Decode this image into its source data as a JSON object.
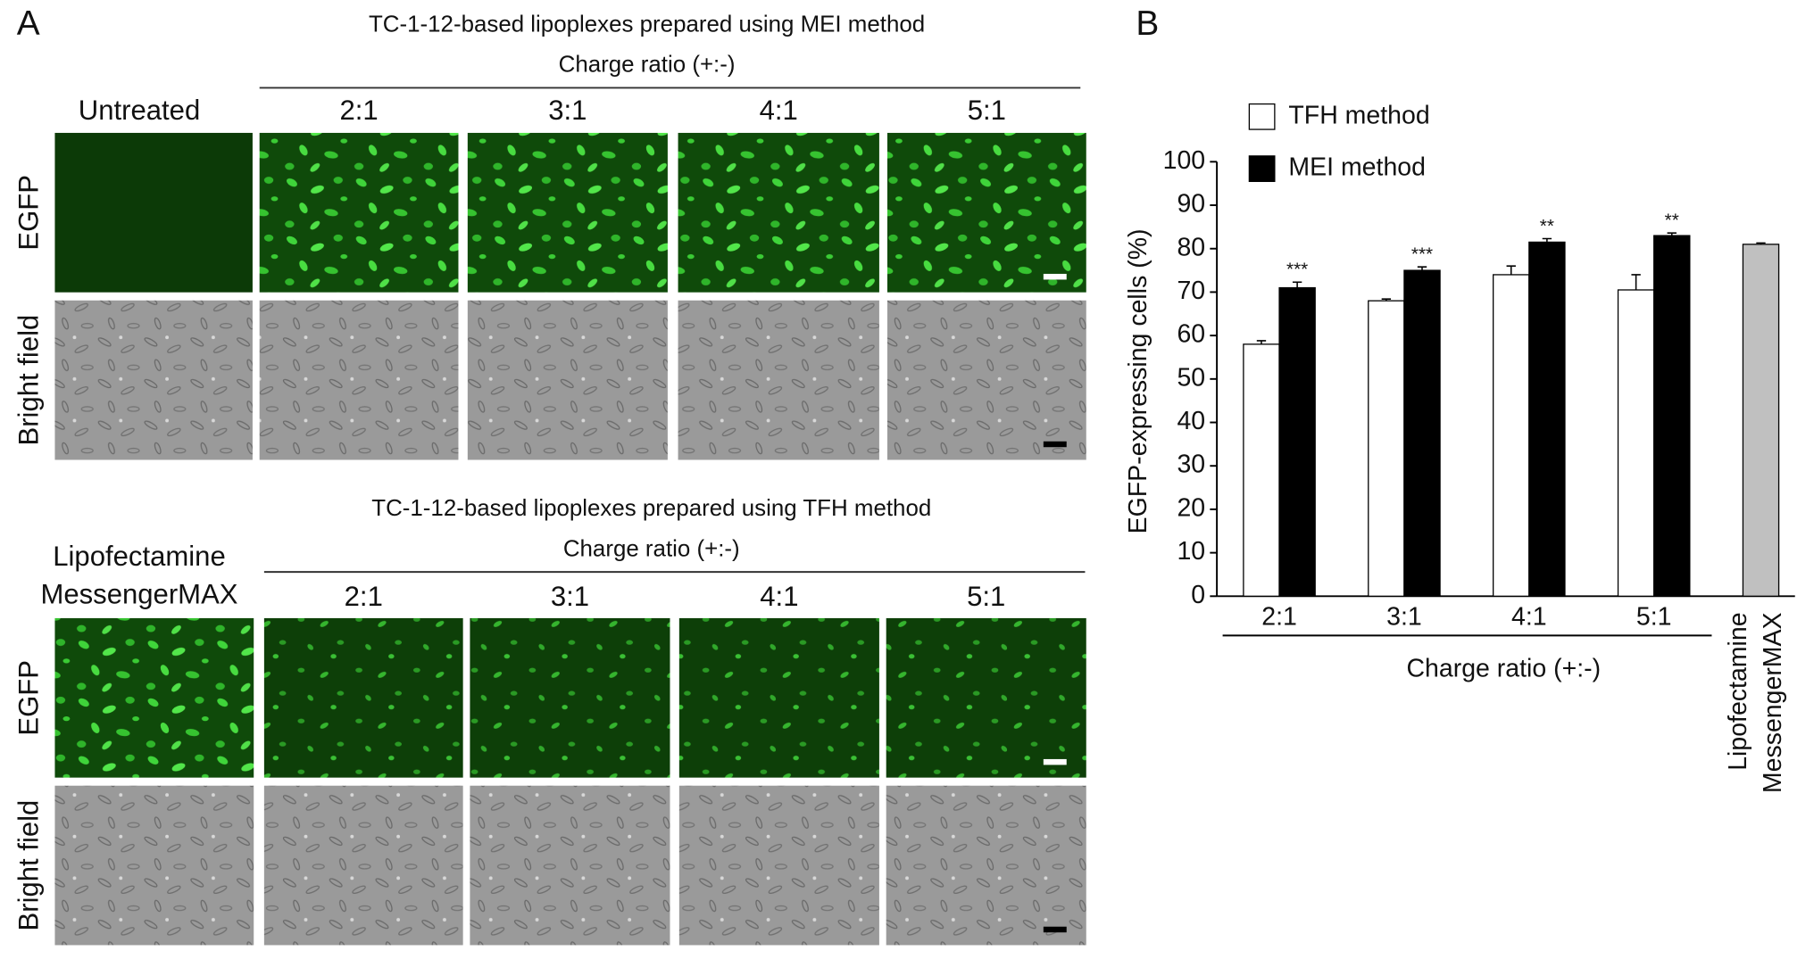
{
  "panel_labels": [
    "A",
    "B"
  ],
  "panel_a": {
    "top": {
      "title": "TC-1-12-based lipoplexes prepared using MEI method",
      "subtitle": "Charge ratio (+:-)",
      "control_label": [
        "Untreated"
      ],
      "columns": [
        "2:1",
        "3:1",
        "4:1",
        "5:1"
      ],
      "rows": [
        "EGFP",
        "Bright field"
      ]
    },
    "bottom": {
      "title": "TC-1-12-based lipoplexes prepared using TFH method",
      "subtitle": "Charge ratio (+:-)",
      "control_label": [
        "Lipofectamine",
        "MessengerMAX"
      ],
      "columns": [
        "2:1",
        "3:1",
        "4:1",
        "5:1"
      ],
      "rows": [
        "EGFP",
        "Bright field"
      ]
    }
  },
  "chart_data": {
    "type": "bar",
    "ylabel": "EGFP-expressing cells (%)",
    "xlabel": "Charge ratio (+:-)",
    "categories": [
      "2:1",
      "3:1",
      "4:1",
      "5:1"
    ],
    "series": [
      {
        "name": "TFH method",
        "color": "#ffffff",
        "values": [
          58,
          68,
          74,
          70.5
        ],
        "errors": [
          0.8,
          0.4,
          2,
          3.5
        ]
      },
      {
        "name": "MEI method",
        "color": "#000000",
        "values": [
          71,
          75,
          81.5,
          83
        ],
        "errors": [
          1.3,
          0.8,
          0.8,
          0.6
        ]
      }
    ],
    "annotations": [
      "***",
      "***",
      "**",
      "**"
    ],
    "control": {
      "label": [
        "Lipofectamine",
        "MessengerMAX"
      ],
      "value": 81,
      "error": 0.3,
      "color": "#c0c0c0"
    },
    "ylim": [
      0,
      100
    ],
    "yticks": [
      0,
      10,
      20,
      30,
      40,
      50,
      60,
      70,
      80,
      90,
      100
    ],
    "legend": "upper left"
  }
}
